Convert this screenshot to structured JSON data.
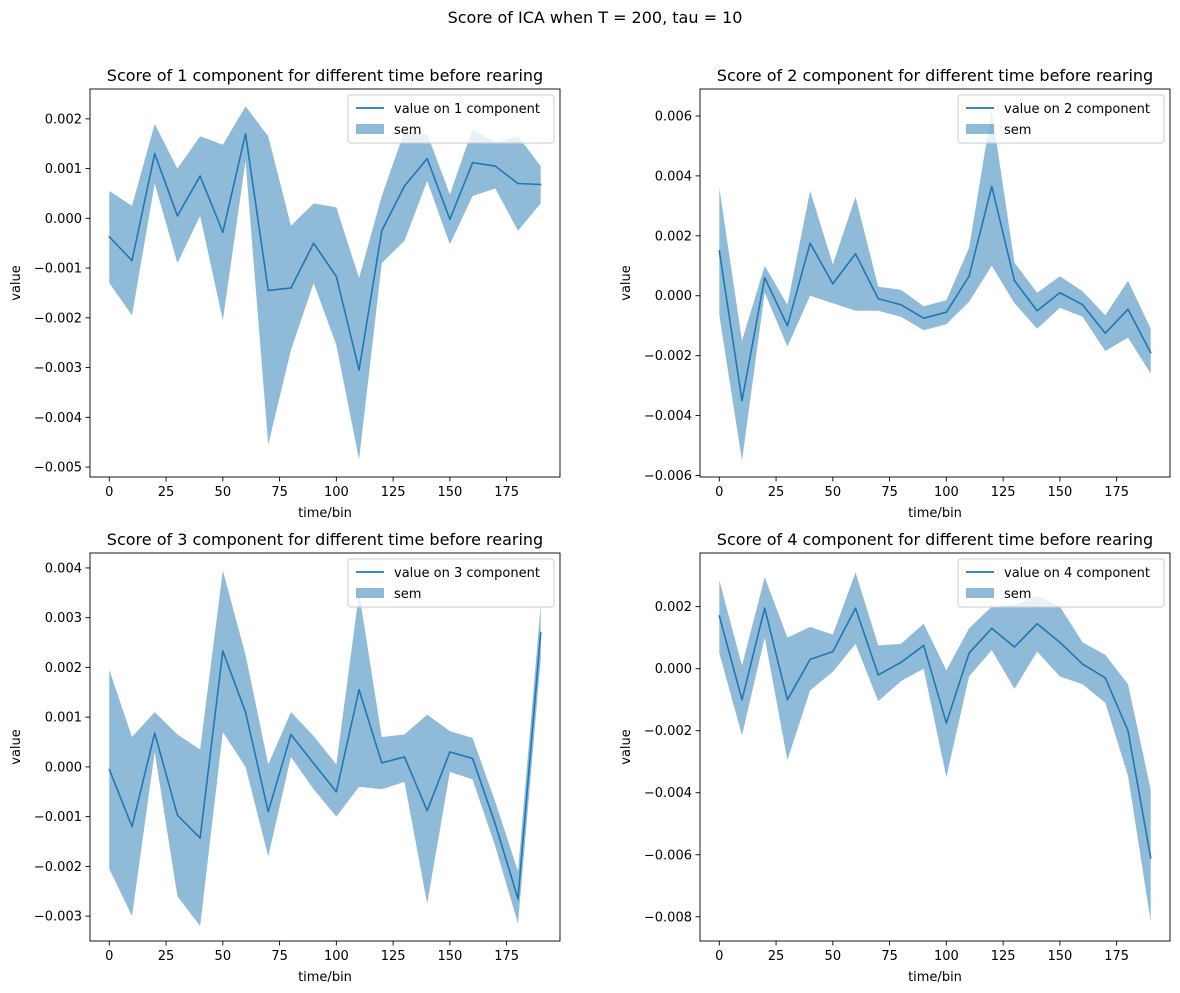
{
  "suptitle": "Score of ICA when T = 200, tau = 10",
  "colors": {
    "line": "#1f77b4",
    "band": "#1f77b4",
    "band_opacity": 0.5,
    "legend_edge": "#cccccc"
  },
  "chart_data": [
    {
      "type": "line",
      "title": "Score of 1 component for different time before rearing",
      "xlabel": "time/bin",
      "ylabel": "value",
      "xlim": [
        -8.5,
        198.5
      ],
      "ylim": [
        -0.0052,
        0.0026
      ],
      "xticks": [
        0,
        25,
        50,
        75,
        100,
        125,
        150,
        175
      ],
      "xtick_labels": [
        "0",
        "25",
        "50",
        "75",
        "100",
        "125",
        "150",
        "175"
      ],
      "yticks": [
        -0.005,
        -0.004,
        -0.003,
        -0.002,
        -0.001,
        0.0,
        0.001,
        0.002
      ],
      "ytick_labels": [
        "−0.005",
        "−0.004",
        "−0.003",
        "−0.002",
        "−0.001",
        "0.000",
        "0.001",
        "0.002"
      ],
      "legend": {
        "placement": "upper right",
        "line_label": "value on 1 component",
        "band_label": "sem"
      },
      "x": [
        0,
        10,
        20,
        30,
        40,
        50,
        60,
        70,
        80,
        90,
        100,
        110,
        120,
        130,
        140,
        150,
        160,
        170,
        180,
        190
      ],
      "series": [
        {
          "name": "value on 1 component",
          "values": [
            -0.00037,
            -0.00085,
            0.0013,
            5e-05,
            0.00085,
            -0.00028,
            0.0017,
            -0.00145,
            -0.0014,
            -0.0005,
            -0.00117,
            -0.00305,
            -0.00025,
            0.00065,
            0.0012,
            -2e-05,
            0.00112,
            0.00105,
            0.0007,
            0.00068
          ],
          "lower": [
            -0.0013,
            -0.00195,
            0.0007,
            -0.0009,
            5e-05,
            -0.00205,
            0.00115,
            -0.00455,
            -0.00265,
            -0.0013,
            -0.00255,
            -0.00485,
            -0.0009,
            -0.00045,
            0.00075,
            -0.00052,
            0.00045,
            0.0006,
            -0.00025,
            0.0003
          ],
          "upper": [
            0.00055,
            0.00025,
            0.0019,
            0.001,
            0.00165,
            0.00148,
            0.00225,
            0.00165,
            -0.00015,
            0.0003,
            0.00022,
            -0.0012,
            0.00045,
            0.00175,
            0.0017,
            0.00048,
            0.0018,
            0.00152,
            0.00165,
            0.00105
          ]
        }
      ]
    },
    {
      "type": "line",
      "title": "Score of 2 component for different time before rearing",
      "xlabel": "time/bin",
      "ylabel": "value",
      "xlim": [
        -8.5,
        198.5
      ],
      "ylim": [
        -0.00605,
        0.0069
      ],
      "xticks": [
        0,
        25,
        50,
        75,
        100,
        125,
        150,
        175
      ],
      "xtick_labels": [
        "0",
        "25",
        "50",
        "75",
        "100",
        "125",
        "150",
        "175"
      ],
      "yticks": [
        -0.006,
        -0.004,
        -0.002,
        0.0,
        0.002,
        0.004,
        0.006
      ],
      "ytick_labels": [
        "−0.006",
        "−0.004",
        "−0.002",
        "0.000",
        "0.002",
        "0.004",
        "0.006"
      ],
      "legend": {
        "placement": "upper right",
        "line_label": "value on 2 component",
        "band_label": "sem"
      },
      "x": [
        0,
        10,
        20,
        30,
        40,
        50,
        60,
        70,
        80,
        90,
        100,
        110,
        120,
        130,
        140,
        150,
        160,
        170,
        180,
        190
      ],
      "series": [
        {
          "name": "value on 2 component",
          "values": [
            0.0015,
            -0.0035,
            0.0006,
            -0.001,
            0.00175,
            0.0004,
            0.0014,
            -0.0001,
            -0.0003,
            -0.00075,
            -0.00055,
            0.00065,
            0.00365,
            0.0005,
            -0.0005,
            0.0001,
            -0.0003,
            -0.00125,
            -0.00045,
            -0.0019
          ],
          "lower": [
            -0.00065,
            -0.0055,
            0.0001,
            -0.0017,
            0.0,
            -0.00025,
            -0.0005,
            -0.0005,
            -0.0007,
            -0.00115,
            -0.00095,
            -0.0002,
            0.001,
            -0.00025,
            -0.0011,
            -0.0004,
            -0.0007,
            -0.00185,
            -0.0014,
            -0.0026
          ],
          "upper": [
            0.0036,
            -0.0015,
            0.001,
            -0.0003,
            0.0035,
            0.00105,
            0.0033,
            0.0003,
            0.0002,
            -0.00035,
            -0.00015,
            0.0016,
            0.0062,
            0.0011,
            0.0001,
            0.00065,
            0.00015,
            -0.00065,
            0.0005,
            -0.0011
          ]
        }
      ]
    },
    {
      "type": "line",
      "title": "Score of 3 component for different time before rearing",
      "xlabel": "time/bin",
      "ylabel": "value",
      "xlim": [
        -8.5,
        198.5
      ],
      "ylim": [
        -0.0035,
        0.0043
      ],
      "xticks": [
        0,
        25,
        50,
        75,
        100,
        125,
        150,
        175
      ],
      "xtick_labels": [
        "0",
        "25",
        "50",
        "75",
        "100",
        "125",
        "150",
        "175"
      ],
      "yticks": [
        -0.003,
        -0.002,
        -0.001,
        0.0,
        0.001,
        0.002,
        0.003,
        0.004
      ],
      "ytick_labels": [
        "−0.003",
        "−0.002",
        "−0.001",
        "0.000",
        "0.001",
        "0.002",
        "0.003",
        "0.004"
      ],
      "legend": {
        "placement": "upper right",
        "line_label": "value on 3 component",
        "band_label": "sem"
      },
      "x": [
        0,
        10,
        20,
        30,
        40,
        50,
        60,
        70,
        80,
        90,
        100,
        110,
        120,
        130,
        140,
        150,
        160,
        170,
        180,
        190
      ],
      "series": [
        {
          "name": "value on 3 component",
          "values": [
            -5e-05,
            -0.0012,
            0.00068,
            -0.00097,
            -0.00143,
            0.00233,
            0.0011,
            -0.0009,
            0.00065,
            7e-05,
            -0.0005,
            0.00155,
            8e-05,
            0.0002,
            -0.00088,
            0.0003,
            0.00017,
            -0.00115,
            -0.00265,
            0.0027
          ],
          "lower": [
            -0.00205,
            -0.003,
            0.0003,
            -0.0026,
            -0.0032,
            0.0007,
            0.0,
            -0.0018,
            0.0002,
            -0.00045,
            -0.001,
            -0.0004,
            -0.00045,
            -0.0003,
            -0.00275,
            -0.0001,
            -0.00025,
            -0.0016,
            -0.00315,
            0.00215
          ],
          "upper": [
            0.00195,
            0.0006,
            0.0011,
            0.00065,
            0.00035,
            0.00395,
            0.00225,
            5e-05,
            0.0011,
            0.00062,
            5e-05,
            0.0035,
            0.0006,
            0.00065,
            0.00105,
            0.00072,
            0.00058,
            -0.0007,
            -0.0021,
            0.00325
          ]
        }
      ]
    },
    {
      "type": "line",
      "title": "Score of 4 component for different time before rearing",
      "xlabel": "time/bin",
      "ylabel": "value",
      "xlim": [
        -8.5,
        198.5
      ],
      "ylim": [
        -0.00878,
        0.00373
      ],
      "xticks": [
        0,
        25,
        50,
        75,
        100,
        125,
        150,
        175
      ],
      "xtick_labels": [
        "0",
        "25",
        "50",
        "75",
        "100",
        "125",
        "150",
        "175"
      ],
      "yticks": [
        -0.008,
        -0.006,
        -0.004,
        -0.002,
        0.0,
        0.002
      ],
      "ytick_labels": [
        "−0.008",
        "−0.006",
        "−0.004",
        "−0.002",
        "0.000",
        "0.002"
      ],
      "legend": {
        "placement": "upper right",
        "line_label": "value on 4 component",
        "band_label": "sem"
      },
      "x": [
        0,
        10,
        20,
        30,
        40,
        50,
        60,
        70,
        80,
        90,
        100,
        110,
        120,
        130,
        140,
        150,
        160,
        170,
        180,
        190
      ],
      "series": [
        {
          "name": "value on 4 component",
          "values": [
            0.0017,
            -0.001,
            0.00195,
            -0.001,
            0.0003,
            0.00055,
            0.00195,
            -0.0002,
            0.0002,
            0.00075,
            -0.00175,
            0.0005,
            0.0013,
            0.0007,
            0.00145,
            0.00085,
            0.00015,
            -0.0003,
            -0.002,
            -0.0061
          ],
          "lower": [
            0.0005,
            -0.00215,
            0.001,
            -0.00295,
            -0.0007,
            -0.0001,
            0.0008,
            -0.00105,
            -0.0004,
            0.0,
            -0.0035,
            -0.00025,
            0.0006,
            -0.00065,
            0.00055,
            -0.00025,
            -0.0005,
            -0.0011,
            -0.00345,
            -0.00815
          ],
          "upper": [
            0.00285,
            0.0001,
            0.00295,
            0.001,
            0.00135,
            0.0011,
            0.0031,
            0.00075,
            0.0008,
            0.00145,
            -5e-05,
            0.0013,
            0.002,
            0.00205,
            0.00235,
            0.002,
            0.00085,
            0.00045,
            -0.0005,
            -0.0039
          ]
        }
      ]
    }
  ]
}
